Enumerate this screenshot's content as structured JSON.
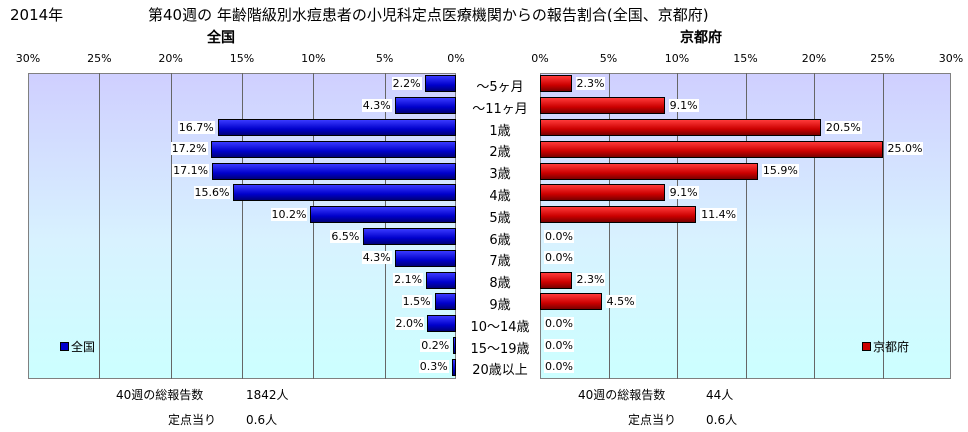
{
  "header": {
    "year": "2014年",
    "title": "第40週の 年齢階級別水痘患者の小児科定点医療機関からの報告割合(全国、京都府)"
  },
  "chart_data": [
    {
      "type": "bar",
      "orientation": "horizontal",
      "direction": "right-to-left",
      "title": "全国",
      "categories": [
        "～5ヶ月",
        "～11ヶ月",
        "1歳",
        "2歳",
        "3歳",
        "4歳",
        "5歳",
        "6歳",
        "7歳",
        "8歳",
        "9歳",
        "10～14歳",
        "15～19歳",
        "20歳以上"
      ],
      "series": [
        {
          "name": "全国",
          "values": [
            2.2,
            4.3,
            16.7,
            17.2,
            17.1,
            15.6,
            10.2,
            6.5,
            4.3,
            2.1,
            1.5,
            2.0,
            0.2,
            0.3
          ]
        }
      ],
      "value_labels": [
        "2.2%",
        "4.3%",
        "16.7%",
        "17.2%",
        "17.1%",
        "15.6%",
        "10.2%",
        "6.5%",
        "4.3%",
        "2.1%",
        "1.5%",
        "2.0%",
        "0.2%",
        "0.3%"
      ],
      "xlim": [
        0,
        30
      ],
      "ticks": [
        "30%",
        "25%",
        "20%",
        "15%",
        "10%",
        "5%",
        "0%"
      ],
      "legend_position": "bottom-left",
      "color": "#0000cc"
    },
    {
      "type": "bar",
      "orientation": "horizontal",
      "direction": "left-to-right",
      "title": "京都府",
      "categories": [
        "～5ヶ月",
        "～11ヶ月",
        "1歳",
        "2歳",
        "3歳",
        "4歳",
        "5歳",
        "6歳",
        "7歳",
        "8歳",
        "9歳",
        "10～14歳",
        "15～19歳",
        "20歳以上"
      ],
      "series": [
        {
          "name": "京都府",
          "values": [
            2.3,
            9.1,
            20.5,
            25.0,
            15.9,
            9.1,
            11.4,
            0.0,
            0.0,
            2.3,
            4.5,
            0.0,
            0.0,
            0.0
          ]
        }
      ],
      "value_labels": [
        "2.3%",
        "9.1%",
        "20.5%",
        "25.0%",
        "15.9%",
        "9.1%",
        "11.4%",
        "0.0%",
        "0.0%",
        "2.3%",
        "4.5%",
        "0.0%",
        "0.0%",
        "0.0%"
      ],
      "xlim": [
        0,
        30
      ],
      "ticks": [
        "0%",
        "5%",
        "10%",
        "15%",
        "20%",
        "25%",
        "30%"
      ],
      "legend_position": "bottom-right",
      "color": "#cc0000"
    }
  ],
  "footer": {
    "national": {
      "total_label": "40週の総報告数",
      "total_value": "1842人",
      "per_label": "定点当り",
      "per_value": "0.6人"
    },
    "kyoto": {
      "total_label": "40週の総報告数",
      "total_value": "44人",
      "per_label": "定点当り",
      "per_value": "0.6人"
    }
  }
}
